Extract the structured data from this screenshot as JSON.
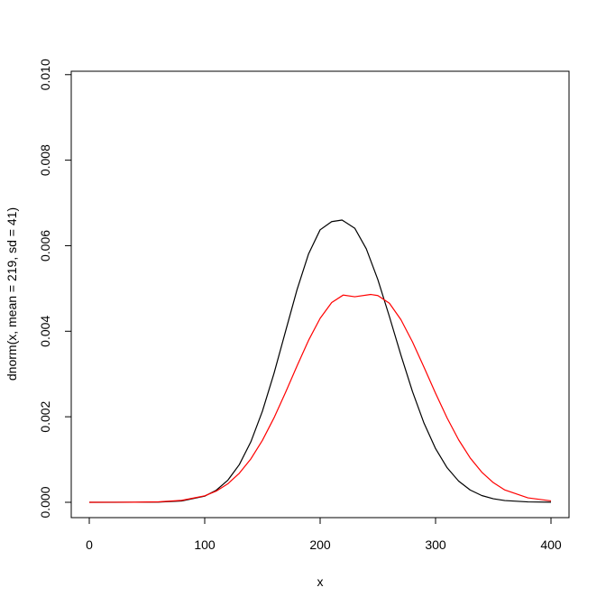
{
  "chart_data": {
    "type": "line",
    "title": "",
    "xlabel": "x",
    "ylabel": "dnorm(x, mean = 219, sd = 41)",
    "xlim": [
      0,
      400
    ],
    "ylim": [
      0,
      0.0097
    ],
    "x_ticks": [
      0,
      100,
      200,
      300,
      400
    ],
    "x_tick_labels": [
      "0",
      "100",
      "200",
      "300",
      "400"
    ],
    "y_ticks": [
      0,
      0.002,
      0.004,
      0.006,
      0.008,
      0.01
    ],
    "y_tick_labels": [
      "0.000",
      "0.002",
      "0.004",
      "0.006",
      "0.008",
      "0.010"
    ],
    "grid": false,
    "series": [
      {
        "color": "#000000",
        "x": [
          0,
          20,
          40,
          60,
          80,
          100,
          110,
          120,
          130,
          140,
          150,
          160,
          170,
          180,
          190,
          200,
          210,
          219,
          230,
          240,
          250,
          260,
          270,
          280,
          290,
          300,
          310,
          320,
          330,
          340,
          350,
          360,
          380,
          400
        ],
        "y": [
          0.0,
          0.0,
          1e-06,
          5e-06,
          3.1e-05,
          0.000144,
          0.000282,
          0.000515,
          0.000882,
          0.001415,
          0.002131,
          0.003011,
          0.003994,
          0.004973,
          0.00581,
          0.006372,
          0.006564,
          0.0066,
          0.006409,
          0.005926,
          0.005207,
          0.004344,
          0.003441,
          0.002589,
          0.00185,
          0.001255,
          0.000809,
          0.000495,
          0.000287,
          0.000158,
          8.3e-05,
          4.1e-05,
          9e-06,
          2e-06
        ]
      },
      {
        "color": "#ff0000",
        "x": [
          0,
          20,
          40,
          60,
          80,
          100,
          110,
          120,
          130,
          140,
          150,
          160,
          170,
          180,
          190,
          200,
          210,
          220,
          230,
          244,
          250,
          260,
          270,
          280,
          290,
          300,
          310,
          320,
          330,
          340,
          350,
          360,
          380,
          400
        ],
        "y": [
          0.0,
          1e-06,
          3e-06,
          1.1e-05,
          4.5e-05,
          0.000152,
          0.000262,
          0.000432,
          0.000679,
          0.001015,
          0.001448,
          0.001973,
          0.002566,
          0.003189,
          0.003789,
          0.004302,
          0.00467,
          0.004846,
          0.004806,
          0.00486,
          0.004834,
          0.004655,
          0.00427,
          0.003751,
          0.003158,
          0.002548,
          0.001971,
          0.00146,
          0.001037,
          0.000706,
          0.000461,
          0.000288,
          0.000104,
          3.3e-05
        ]
      }
    ]
  }
}
